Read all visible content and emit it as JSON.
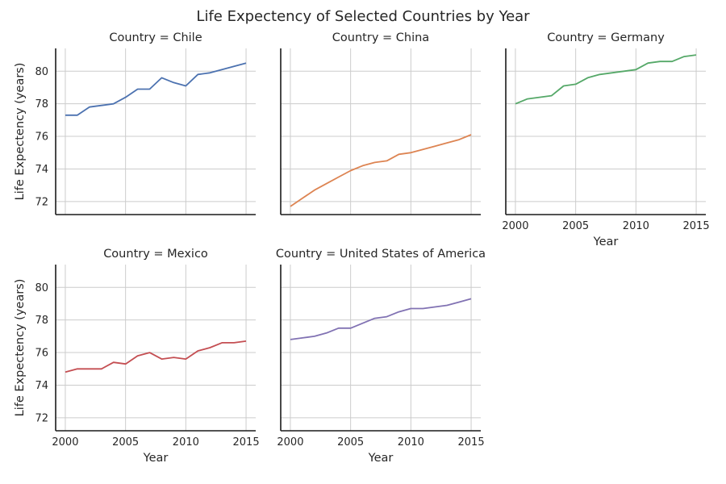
{
  "chart_data": {
    "type": "line",
    "title": "Life Expectency of Selected Countries by Year",
    "xlabel": "Year",
    "ylabel": "Life Expectency (years)",
    "xlim": [
      1999.2,
      2015.8
    ],
    "ylim": [
      71.2,
      81.4
    ],
    "xticks": [
      2000,
      2005,
      2010,
      2015
    ],
    "yticks": [
      72,
      74,
      76,
      78,
      80
    ],
    "grid": true,
    "x": [
      2000,
      2001,
      2002,
      2003,
      2004,
      2005,
      2006,
      2007,
      2008,
      2009,
      2010,
      2011,
      2012,
      2013,
      2014,
      2015
    ],
    "facets": [
      {
        "title": "Country = Chile",
        "color": "#4c72b0",
        "values": [
          77.3,
          77.3,
          77.8,
          77.9,
          78.0,
          78.4,
          78.9,
          78.9,
          79.6,
          79.3,
          79.1,
          79.8,
          79.9,
          80.1,
          80.3,
          80.5
        ]
      },
      {
        "title": "Country = China",
        "color": "#dd8452",
        "values": [
          71.7,
          72.2,
          72.7,
          73.1,
          73.5,
          73.9,
          74.2,
          74.4,
          74.5,
          74.9,
          75.0,
          75.2,
          75.4,
          75.6,
          75.8,
          76.1
        ]
      },
      {
        "title": "Country = Germany",
        "color": "#55a868",
        "values": [
          78.0,
          78.3,
          78.4,
          78.5,
          79.1,
          79.2,
          79.6,
          79.8,
          79.9,
          80.0,
          80.1,
          80.5,
          80.6,
          80.6,
          80.9,
          81.0
        ]
      },
      {
        "title": "Country = Mexico",
        "color": "#c44e52",
        "values": [
          74.8,
          75.0,
          75.0,
          75.0,
          75.4,
          75.3,
          75.8,
          76.0,
          75.6,
          75.7,
          75.6,
          76.1,
          76.3,
          76.6,
          76.6,
          76.7
        ]
      },
      {
        "title": "Country = United States of America",
        "color": "#8172b3",
        "values": [
          76.8,
          76.9,
          77.0,
          77.2,
          77.5,
          77.5,
          77.8,
          78.1,
          78.2,
          78.5,
          78.7,
          78.7,
          78.8,
          78.9,
          79.1,
          79.3
        ]
      }
    ]
  }
}
